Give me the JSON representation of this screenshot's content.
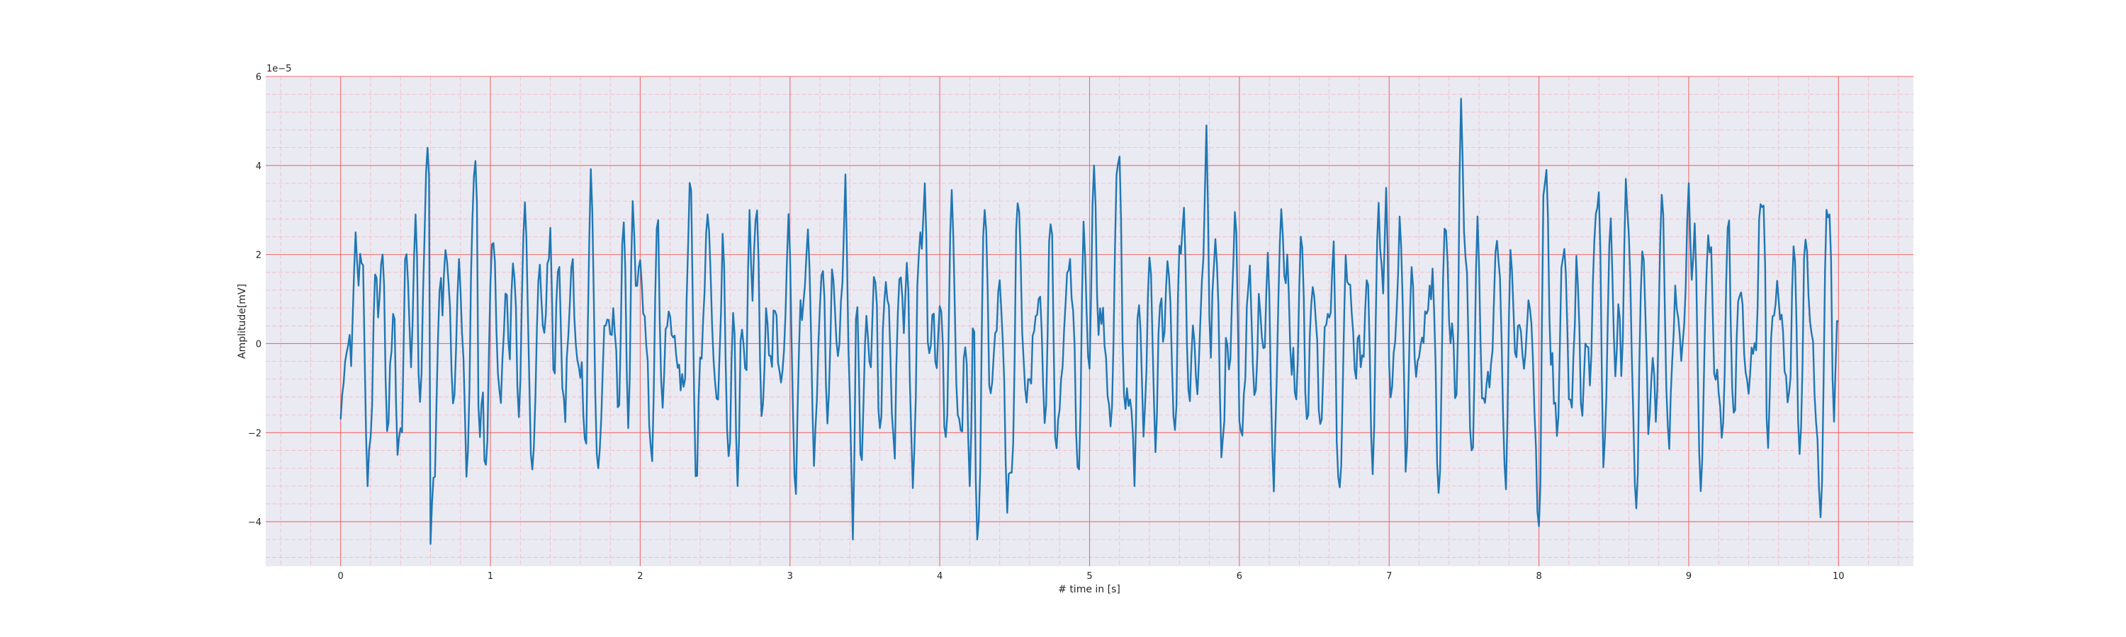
{
  "chart_data": {
    "type": "line",
    "title": "",
    "xlabel": "# time in [s]",
    "ylabel": "Amplitude[mV]",
    "y_offset_text": "1e−5",
    "xlim": [
      -0.5,
      10.5
    ],
    "ylim": [
      -5.0,
      6.0
    ],
    "x_ticks": [
      0,
      1,
      2,
      3,
      4,
      5,
      6,
      7,
      8,
      9,
      10
    ],
    "x_tick_labels": [
      "0",
      "1",
      "2",
      "3",
      "4",
      "5",
      "6",
      "7",
      "8",
      "9",
      "10"
    ],
    "y_ticks": [
      -4,
      -2,
      0,
      2,
      4,
      6
    ],
    "y_tick_labels": [
      "−4",
      "−2",
      "0",
      "2",
      "4",
      "6"
    ],
    "grid": "on",
    "colors": {
      "plot_background": "#EAEAF2",
      "major_grid": "#F06A6A",
      "minor_grid": "#F5B8C2",
      "line": "#1F77B4"
    },
    "series": [
      {
        "x": [
          0,
          0.1,
          0.2,
          0.28,
          0.38,
          0.5,
          0.58,
          0.6,
          0.7,
          0.9,
          0.93,
          1.15,
          1.4,
          1.72,
          1.95,
          2.45,
          2.65,
          2.73,
          3.37,
          3.42,
          3.9,
          4.2,
          4.25,
          4.3,
          4.45,
          5.03,
          5.2,
          5.3,
          5.6,
          5.78,
          6.32,
          6.66,
          6.98,
          7.48,
          7.55,
          8.0,
          8.05,
          8.4,
          8.58,
          8.65,
          9.0,
          9.5,
          9.88,
          9.94,
          10.0
        ],
        "y": [
          -1.7,
          2.5,
          -2.1,
          2.0,
          -2.5,
          2.9,
          4.4,
          -4.5,
          2.1,
          4.1,
          -2.1,
          1.8,
          2.6,
          -2.8,
          3.2,
          2.9,
          -3.2,
          3.0,
          3.8,
          -4.4,
          3.6,
          -3.2,
          -4.4,
          3.0,
          -3.8,
          4.0,
          4.2,
          -3.2,
          2.2,
          4.9,
          2.0,
          -3.0,
          3.5,
          5.5,
          -2.4,
          -4.1,
          3.9,
          3.4,
          3.7,
          -3.7,
          3.6,
          3.1,
          -3.9,
          2.9,
          0.5
        ]
      }
    ]
  }
}
